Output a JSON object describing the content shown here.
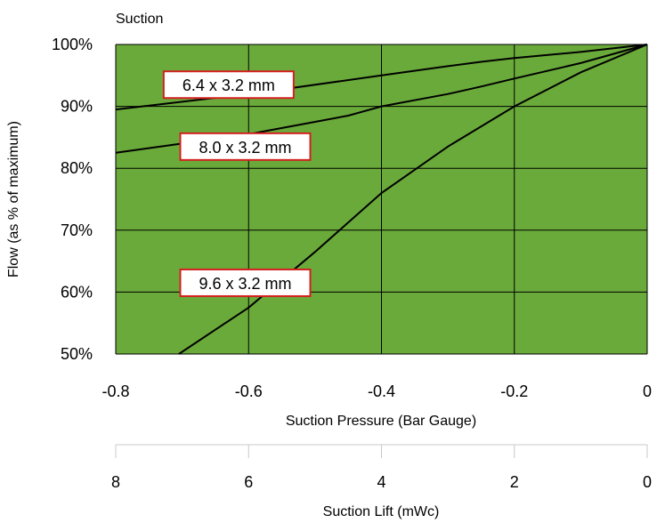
{
  "chart_data": {
    "type": "line",
    "title": "Suction",
    "xlabel": "Suction Pressure (Bar Gauge)",
    "ylabel": "Flow (as % of maximum)",
    "secondary_xlabel": "Suction Lift (mWc)",
    "xlim": [
      -0.8,
      0
    ],
    "ylim": [
      50,
      100
    ],
    "x_ticks": [
      "-0.8",
      "-0.6",
      "-0.4",
      "-0.2",
      "0"
    ],
    "x_tick_values": [
      -0.8,
      -0.6,
      -0.4,
      -0.2,
      0
    ],
    "y_ticks": [
      "50%",
      "60%",
      "70%",
      "80%",
      "90%",
      "100%"
    ],
    "y_tick_values": [
      50,
      60,
      70,
      80,
      90,
      100
    ],
    "secondary_x_ticks": [
      "8",
      "6",
      "4",
      "2",
      "0"
    ],
    "secondary_x_tick_values": [
      -0.8,
      -0.6,
      -0.4,
      -0.2,
      0
    ],
    "grid": true,
    "plot_background": "#6aaa3a",
    "line_color": "#000000",
    "label_border_color": "#d42020",
    "series": [
      {
        "name": "6.4 x 3.2 mm",
        "label_at": [
          -0.63,
          93.5
        ],
        "points": [
          [
            -0.8,
            89.5
          ],
          [
            -0.6,
            92
          ],
          [
            -0.4,
            95
          ],
          [
            -0.3,
            96.5
          ],
          [
            -0.25,
            97.2
          ],
          [
            -0.2,
            97.8
          ],
          [
            -0.1,
            98.8
          ],
          [
            0,
            100
          ]
        ]
      },
      {
        "name": "8.0 x 3.2 mm",
        "label_at": [
          -0.605,
          83.5
        ],
        "points": [
          [
            -0.8,
            82.5
          ],
          [
            -0.7,
            84
          ],
          [
            -0.6,
            85.5
          ],
          [
            -0.5,
            87.5
          ],
          [
            -0.45,
            88.5
          ],
          [
            -0.4,
            90
          ],
          [
            -0.3,
            92
          ],
          [
            -0.25,
            93.2
          ],
          [
            -0.2,
            94.5
          ],
          [
            -0.1,
            97
          ],
          [
            0,
            100
          ]
        ]
      },
      {
        "name": "9.6 x 3.2 mm",
        "label_at": [
          -0.605,
          61.5
        ],
        "points": [
          [
            -0.705,
            50
          ],
          [
            -0.6,
            57.5
          ],
          [
            -0.5,
            66.5
          ],
          [
            -0.4,
            76
          ],
          [
            -0.3,
            83.5
          ],
          [
            -0.2,
            90
          ],
          [
            -0.1,
            95.5
          ],
          [
            0,
            100
          ]
        ]
      }
    ]
  }
}
